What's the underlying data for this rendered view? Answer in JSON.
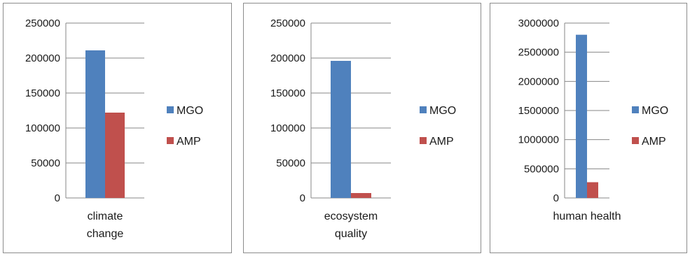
{
  "colors": {
    "MGO": "#4F81BD",
    "AMP": "#C0504D"
  },
  "chart_data": [
    {
      "type": "bar",
      "categories": [
        "climate change"
      ],
      "category_lines": [
        "climate",
        "change"
      ],
      "series": [
        {
          "name": "MGO",
          "values": [
            211000
          ]
        },
        {
          "name": "AMP",
          "values": [
            122000
          ]
        }
      ],
      "ylim": [
        0,
        250000
      ],
      "yticks": [
        0,
        50000,
        100000,
        150000,
        200000,
        250000
      ],
      "ytick_labels": [
        "0",
        "50000",
        "100000",
        "150000",
        "200000",
        "250000"
      ],
      "grid": true,
      "legend": "right"
    },
    {
      "type": "bar",
      "categories": [
        "ecosystem quality"
      ],
      "category_lines": [
        "ecosystem",
        "quality"
      ],
      "series": [
        {
          "name": "MGO",
          "values": [
            196000
          ]
        },
        {
          "name": "AMP",
          "values": [
            7000
          ]
        }
      ],
      "ylim": [
        0,
        250000
      ],
      "yticks": [
        0,
        50000,
        100000,
        150000,
        200000,
        250000
      ],
      "ytick_labels": [
        "0",
        "50000",
        "100000",
        "150000",
        "200000",
        "250000"
      ],
      "grid": true,
      "legend": "right"
    },
    {
      "type": "bar",
      "categories": [
        "human health"
      ],
      "category_lines": [
        "human health"
      ],
      "series": [
        {
          "name": "MGO",
          "values": [
            2800000
          ]
        },
        {
          "name": "AMP",
          "values": [
            270000
          ]
        }
      ],
      "ylim": [
        0,
        3000000
      ],
      "yticks": [
        0,
        500000,
        1000000,
        1500000,
        2000000,
        2500000,
        3000000
      ],
      "ytick_labels": [
        "0",
        "500000",
        "1000000",
        "1500000",
        "2000000",
        "2500000",
        "3000000"
      ],
      "grid": true,
      "legend": "right"
    }
  ]
}
